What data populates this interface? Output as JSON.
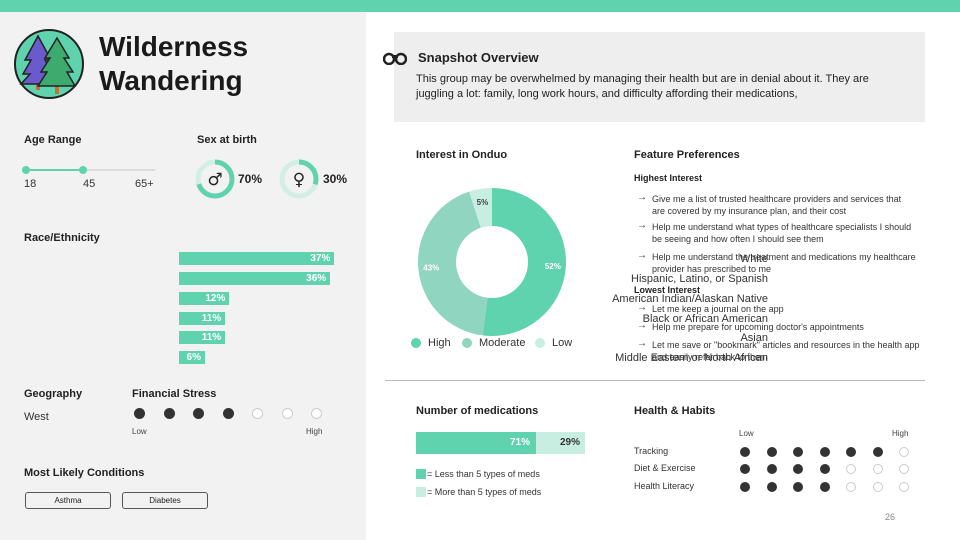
{
  "title_line1": "Wilderness",
  "title_line2": "Wandering",
  "logo": {
    "icon": "pine-trees-icon",
    "bg": "#5fd2ae",
    "tree_colors": [
      "#6a5acd",
      "#3daa6e"
    ]
  },
  "age": {
    "heading": "Age Range",
    "ticks": [
      "18",
      "45",
      "65+"
    ]
  },
  "sex": {
    "heading": "Sex at birth",
    "male_pct": "70%",
    "female_pct": "30%",
    "male_value": 70,
    "female_value": 30
  },
  "race": {
    "heading": "Race/Ethnicity",
    "items": [
      {
        "label": "White",
        "pct": "37%"
      },
      {
        "label": "Hispanic, Latino, or Spanish",
        "pct": "36%"
      },
      {
        "label": "American Indian/Alaskan Native",
        "pct": "12%"
      },
      {
        "label": "Black or African American",
        "pct": "11%"
      },
      {
        "label": "Asian",
        "pct": "11%"
      },
      {
        "label": "Middle Eastern or North African",
        "pct": "6%"
      }
    ]
  },
  "geography": {
    "heading": "Geography",
    "value": "West"
  },
  "financial": {
    "heading": "Financial Stress",
    "low": "Low",
    "high": "High",
    "level": 4,
    "max": 7
  },
  "conditions": {
    "heading": "Most Likely Conditions",
    "items": [
      "Asthma",
      "Diabetes"
    ]
  },
  "overview": {
    "heading": "Snapshot Overview",
    "icon": "binoculars-icon",
    "text": "This group may be overwhelmed by managing their health but are in denial about it. They are juggling a lot: family, long work hours, and difficulty affording their medications,"
  },
  "interest": {
    "heading": "Interest in Onduo",
    "legend": [
      "High",
      "Moderate",
      "Low"
    ]
  },
  "chart_data": {
    "type": "pie",
    "title": "Interest in Onduo",
    "categories": [
      "High",
      "Moderate",
      "Low"
    ],
    "values": [
      52,
      43,
      5
    ],
    "labels": [
      "52%",
      "43%",
      "5%"
    ],
    "colors": [
      "#5fd2ae",
      "#8fd5c0",
      "#c8eee1"
    ]
  },
  "features": {
    "heading": "Feature Preferences",
    "highest_heading": "Highest Interest",
    "highest": [
      {
        "line1": "Give me a list  of trusted healthcare providers and services that",
        "line2": "are covered by my insurance plan, and their cost"
      },
      {
        "line1": "Help me understand what types of healthcare specialists I should",
        "line2": "be seeing and how often I should see them"
      },
      {
        "line1": "Help me understand the treatment and medications my healthcare",
        "line2": "provider has prescribed to me"
      }
    ],
    "lowest_heading": "Lowest Interest",
    "lowest": [
      {
        "line1": "Let me keep a journal on the app",
        "line2": ""
      },
      {
        "line1": "Help me prepare for upcoming doctor's appointments",
        "line2": ""
      },
      {
        "line1": "Let me save or \"bookmark\" articles and resources in the health app",
        "line2": "and easily refer back to them"
      }
    ]
  },
  "medications": {
    "heading": "Number of medications",
    "less_pct": "71%",
    "more_pct": "29%",
    "less_value": 71,
    "legend_less": "= Less than 5 types of meds",
    "legend_more": "= More than 5 types of meds"
  },
  "habits": {
    "heading": "Health & Habits",
    "low": "Low",
    "high": "High",
    "rows": [
      {
        "label": "Tracking",
        "level": 6,
        "max": 7
      },
      {
        "label": "Diet & Exercise",
        "level": 4,
        "max": 7
      },
      {
        "label": "Health Literacy",
        "level": 4,
        "max": 7
      }
    ]
  },
  "page_number": "26"
}
